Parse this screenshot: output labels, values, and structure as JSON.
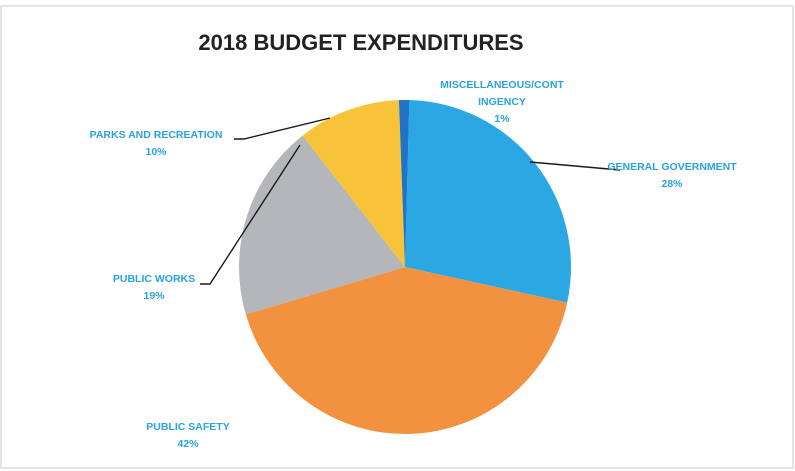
{
  "chart_data": {
    "type": "pie",
    "title": "2018 BUDGET EXPENDITURES",
    "legend": "none",
    "slices": [
      {
        "name": "GENERAL GOVERNMENT",
        "name_lines": [
          "GENERAL GOVERNMENT"
        ],
        "value": 28,
        "label": "28%",
        "color": "#2ba8e3"
      },
      {
        "name": "PUBLIC SAFETY",
        "name_lines": [
          "PUBLIC SAFETY"
        ],
        "value": 42,
        "label": "42%",
        "color": "#f2923f"
      },
      {
        "name": "PUBLIC WORKS",
        "name_lines": [
          "PUBLIC WORKS"
        ],
        "value": 19,
        "label": "19%",
        "color": "#b4b6b9"
      },
      {
        "name": "PARKS AND RECREATION",
        "name_lines": [
          "PARKS AND RECREATION"
        ],
        "value": 10,
        "label": "10%",
        "color": "#f7c339"
      },
      {
        "name": "MISCELLANEOUS/CONTINGENCY",
        "name_lines": [
          "MISCELLANEOUS/CONT",
          "INGENCY"
        ],
        "value": 1,
        "label": "1%",
        "color": "#2073c6"
      }
    ]
  }
}
